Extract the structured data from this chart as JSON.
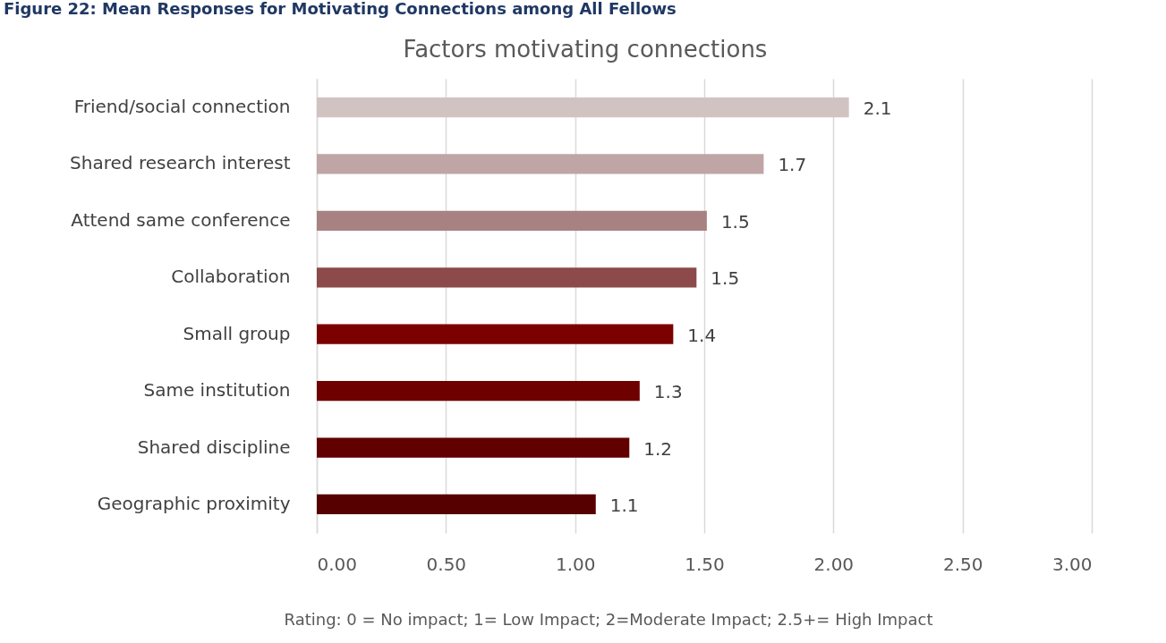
{
  "chart_data": {
    "type": "bar",
    "orientation": "horizontal",
    "title": "Factors motivating connections",
    "categories": [
      "Friend/social connection",
      "Shared research interest",
      "Attend same conference",
      "Collaboration",
      "Small group",
      "Same institution",
      "Shared discipline",
      "Geographic proximity"
    ],
    "values": [
      2.06,
      1.73,
      1.51,
      1.47,
      1.38,
      1.25,
      1.21,
      1.08
    ],
    "value_labels": [
      "2.1",
      "1.7",
      "1.5",
      "1.5",
      "1.4",
      "1.3",
      "1.2",
      "1.1"
    ],
    "colors": [
      "#d2c3c3",
      "#bfa5a5",
      "#a88282",
      "#8c4a4a",
      "#7b0000",
      "#6e0000",
      "#620000",
      "#560000"
    ],
    "xlim": [
      0,
      3
    ],
    "xticks": [
      {
        "value": 0,
        "label": "0.00"
      },
      {
        "value": 0.5,
        "label": "0.50"
      },
      {
        "value": 1,
        "label": "1.00"
      },
      {
        "value": 1.5,
        "label": "1.50"
      },
      {
        "value": 2,
        "label": "2.00"
      },
      {
        "value": 2.5,
        "label": "2.50"
      },
      {
        "value": 3,
        "label": "3.00"
      }
    ],
    "grid": "x",
    "annotations": [
      "Figure 22: Mean Responses for Motivating Connections among All Fellows",
      "Rating: 0 = No impact; 1= Low Impact; 2=Moderate Impact; 2.5+= High Impact"
    ]
  }
}
